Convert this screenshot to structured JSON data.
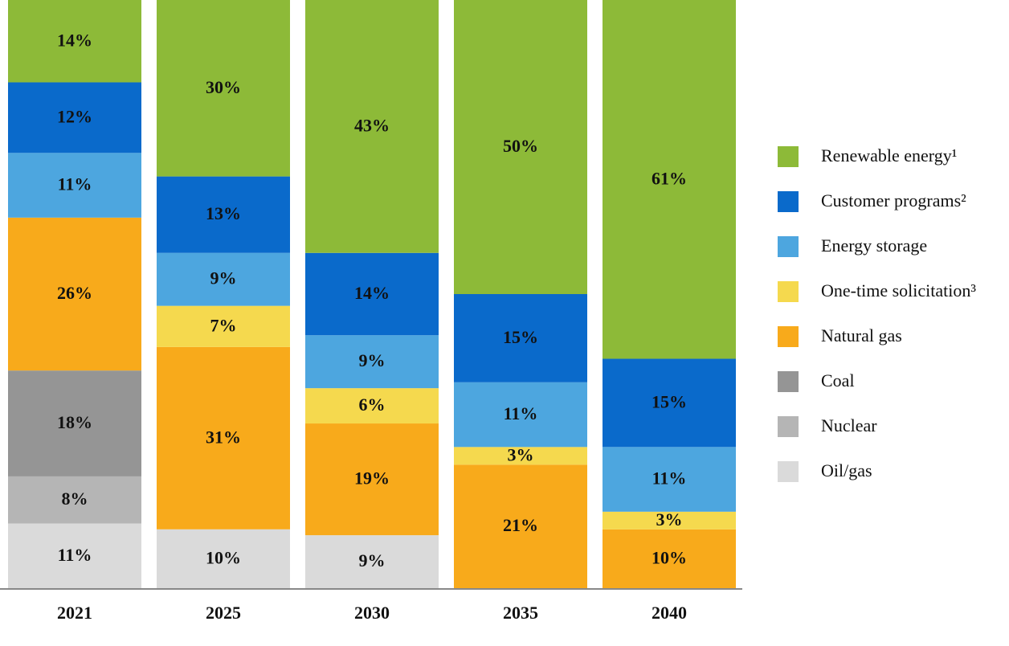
{
  "chart_data": {
    "type": "stacked_bar",
    "categories": [
      "2021",
      "2025",
      "2030",
      "2035",
      "2040"
    ],
    "series": [
      {
        "name": "Renewable energy¹",
        "color": "#8dba38",
        "values": [
          14,
          30,
          43,
          50,
          61
        ],
        "value_labels": [
          "14%",
          "30%",
          "43%",
          "50%",
          "61%"
        ]
      },
      {
        "name": "Customer programs²",
        "color": "#0a6acb",
        "values": [
          12,
          13,
          14,
          15,
          15
        ],
        "value_labels": [
          "12%",
          "13%",
          "14%",
          "15%",
          "15%"
        ]
      },
      {
        "name": "Energy storage",
        "color": "#4da6df",
        "values": [
          11,
          9,
          9,
          11,
          11
        ],
        "value_labels": [
          "11%",
          "9%",
          "9%",
          "11%",
          "11%"
        ]
      },
      {
        "name": "One-time solicitation³",
        "color": "#f5d94e",
        "values": [
          null,
          7,
          6,
          3,
          3
        ],
        "value_labels": [
          null,
          "7%",
          "6%",
          "3%",
          "3%"
        ]
      },
      {
        "name": "Natural gas",
        "color": "#f8aa1b",
        "values": [
          26,
          31,
          19,
          21,
          10
        ],
        "value_labels": [
          "26%",
          "31%",
          "19%",
          "21%",
          "10%"
        ]
      },
      {
        "name": "Coal",
        "color": "#959595",
        "values": [
          18,
          null,
          null,
          null,
          null
        ],
        "value_labels": [
          "18%",
          null,
          null,
          null,
          null
        ]
      },
      {
        "name": "Nuclear",
        "color": "#b5b5b5",
        "values": [
          8,
          null,
          null,
          null,
          null
        ],
        "value_labels": [
          "8%",
          null,
          null,
          null,
          null
        ]
      },
      {
        "name": "Oil/gas",
        "color": "#dadada",
        "values": [
          11,
          10,
          9,
          null,
          null
        ],
        "value_labels": [
          "11%",
          "10%",
          "9%",
          null,
          null
        ]
      }
    ]
  }
}
